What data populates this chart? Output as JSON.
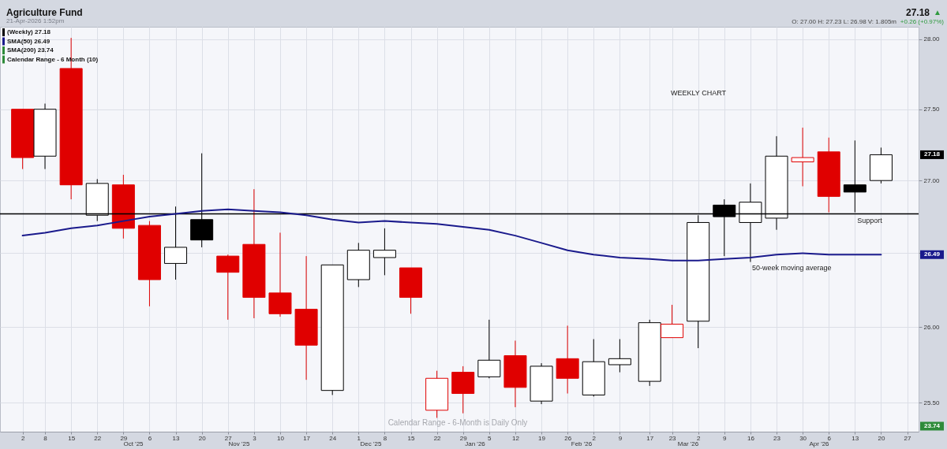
{
  "chart_data": {
    "type": "candlestick",
    "title": "Agriculture Fund",
    "subtitle": "21-Apr-2026 1:52pm",
    "x": [
      "2025-09-02",
      "2025-09-08",
      "2025-09-15",
      "2025-09-22",
      "2025-09-29",
      "2025-10-06",
      "2025-10-13",
      "2025-10-20",
      "2025-10-27",
      "2025-11-03",
      "2025-11-10",
      "2025-11-17",
      "2025-11-24",
      "2025-12-01",
      "2025-12-08",
      "2025-12-15",
      "2025-12-22",
      "2025-12-29",
      "2026-01-05",
      "2026-01-12",
      "2026-01-19",
      "2026-01-26",
      "2026-02-02",
      "2026-02-09",
      "2026-02-17",
      "2026-02-23",
      "2026-03-02",
      "2026-03-09",
      "2026-03-16",
      "2026-03-23",
      "2026-03-30",
      "2026-04-06",
      "2026-04-13",
      "2026-04-20"
    ],
    "series": [
      {
        "name": "(Weekly) 27.18",
        "ohlc": [
          [
            27.5,
            27.5,
            27.08,
            27.16
          ],
          [
            27.17,
            27.54,
            27.08,
            27.5
          ],
          [
            27.79,
            28.01,
            26.87,
            26.97
          ],
          [
            26.76,
            27.01,
            26.72,
            26.98
          ],
          [
            26.97,
            27.04,
            26.6,
            26.67
          ],
          [
            26.69,
            26.72,
            26.14,
            26.32
          ],
          [
            26.43,
            26.82,
            26.32,
            26.54
          ],
          [
            26.73,
            27.19,
            26.54,
            26.59
          ],
          [
            26.48,
            26.49,
            26.05,
            26.37
          ],
          [
            26.56,
            26.94,
            26.06,
            26.2
          ],
          [
            26.23,
            26.64,
            26.07,
            26.09
          ],
          [
            26.12,
            26.48,
            25.65,
            25.88
          ],
          [
            25.58,
            26.42,
            25.55,
            26.42
          ],
          [
            26.32,
            26.57,
            26.27,
            26.52
          ],
          [
            26.47,
            26.67,
            26.35,
            26.52
          ],
          [
            26.4,
            26.4,
            26.09,
            26.2
          ],
          [
            25.45,
            25.71,
            25.4,
            25.66
          ],
          [
            25.7,
            25.74,
            25.43,
            25.56
          ],
          [
            25.67,
            26.05,
            25.66,
            25.78
          ],
          [
            25.81,
            25.91,
            25.47,
            25.6
          ],
          [
            25.51,
            25.76,
            25.49,
            25.74
          ],
          [
            25.79,
            26.01,
            25.56,
            25.66
          ],
          [
            25.55,
            25.92,
            25.54,
            25.77
          ],
          [
            25.75,
            25.92,
            25.7,
            25.79
          ],
          [
            25.64,
            26.05,
            25.61,
            26.03
          ],
          [
            25.93,
            26.15,
            25.93,
            26.02
          ],
          [
            26.04,
            26.76,
            25.86,
            26.71
          ],
          [
            26.83,
            26.87,
            26.48,
            26.75
          ],
          [
            26.71,
            26.98,
            26.44,
            26.85
          ],
          [
            26.74,
            27.31,
            26.66,
            27.17
          ],
          [
            27.13,
            27.37,
            26.96,
            27.16
          ],
          [
            27.2,
            27.3,
            26.78,
            26.89
          ],
          [
            26.97,
            27.28,
            26.78,
            26.92
          ],
          [
            27.0,
            27.23,
            26.98,
            27.18
          ]
        ],
        "colors": [
          "#e00000",
          "#000000",
          "#e00000",
          "#000000",
          "#e00000",
          "#e00000",
          "#000000",
          "#000000",
          "#e00000",
          "#e00000",
          "#e00000",
          "#e00000",
          "#000000",
          "#000000",
          "#000000",
          "#e00000",
          "#e00000",
          "#e00000",
          "#000000",
          "#e00000",
          "#000000",
          "#e00000",
          "#000000",
          "#000000",
          "#000000",
          "#e00000",
          "#000000",
          "#000000",
          "#000000",
          "#000000",
          "#e00000",
          "#e00000",
          "#000000",
          "#000000"
        ]
      },
      {
        "name": "SMA(50) 26.49",
        "type": "line",
        "color": "#1a1a8c",
        "values": [
          26.62,
          26.64,
          26.67,
          26.69,
          26.72,
          26.75,
          26.77,
          26.79,
          26.8,
          26.79,
          26.78,
          26.76,
          26.73,
          26.71,
          26.72,
          26.71,
          26.7,
          26.68,
          26.66,
          26.62,
          26.57,
          26.52,
          26.49,
          26.47,
          26.46,
          26.45,
          26.45,
          26.46,
          26.47,
          26.49,
          26.5,
          26.49,
          26.49,
          26.49
        ]
      },
      {
        "name": "SMA(200) 23.74",
        "type": "line",
        "color": "#2e8b3a",
        "values": [
          null,
          null,
          null,
          null,
          null,
          null,
          null,
          null,
          null,
          null,
          null,
          null,
          null,
          null,
          null,
          null,
          null,
          null,
          null,
          null,
          null,
          null,
          null,
          null,
          null,
          null,
          null,
          null,
          null,
          null,
          null,
          null,
          null,
          null
        ]
      },
      {
        "name": "Calendar Range - 6 Month (10)",
        "type": "line",
        "color": "#2e8b3a",
        "values": [
          null,
          null,
          null,
          null,
          null,
          null,
          null,
          null,
          null,
          null,
          null,
          null,
          null,
          null,
          null,
          null,
          null,
          null,
          null,
          null,
          null,
          null,
          null,
          null,
          null,
          null,
          null,
          null,
          null,
          null,
          null,
          null,
          null,
          null
        ]
      }
    ],
    "xlim": [
      "2025-08-28",
      "2026-04-29"
    ],
    "xticks": [
      {
        "value": "2025-09-02",
        "label": "2"
      },
      {
        "value": "2025-09-08",
        "label": "8"
      },
      {
        "value": "2025-09-15",
        "label": "15"
      },
      {
        "value": "2025-09-22",
        "label": "22"
      },
      {
        "value": "2025-09-29",
        "label": "29"
      },
      {
        "value": "2025-10-06",
        "label": "6"
      },
      {
        "value": "2025-10-13",
        "label": "13"
      },
      {
        "value": "2025-10-20",
        "label": "20"
      },
      {
        "value": "2025-10-27",
        "label": "27"
      },
      {
        "value": "2025-11-03",
        "label": "3"
      },
      {
        "value": "2025-11-10",
        "label": "10"
      },
      {
        "value": "2025-11-17",
        "label": "17"
      },
      {
        "value": "2025-11-24",
        "label": "24"
      },
      {
        "value": "2025-12-01",
        "label": "1"
      },
      {
        "value": "2025-12-08",
        "label": "8"
      },
      {
        "value": "2025-12-15",
        "label": "15"
      },
      {
        "value": "2025-12-22",
        "label": "22"
      },
      {
        "value": "2025-12-29",
        "label": "29"
      },
      {
        "value": "2026-01-05",
        "label": "5"
      },
      {
        "value": "2026-01-12",
        "label": "12"
      },
      {
        "value": "2026-01-19",
        "label": "19"
      },
      {
        "value": "2026-01-26",
        "label": "26"
      },
      {
        "value": "2026-02-02",
        "label": "2"
      },
      {
        "value": "2026-02-09",
        "label": "9"
      },
      {
        "value": "2026-02-17",
        "label": "17"
      },
      {
        "value": "2026-02-23",
        "label": "23"
      },
      {
        "value": "2026-03-02",
        "label": "2"
      },
      {
        "value": "2026-03-09",
        "label": "9"
      },
      {
        "value": "2026-03-16",
        "label": "16"
      },
      {
        "value": "2026-03-23",
        "label": "23"
      },
      {
        "value": "2026-03-30",
        "label": "30"
      },
      {
        "value": "2026-04-06",
        "label": "6"
      },
      {
        "value": "2026-04-13",
        "label": "13"
      },
      {
        "value": "2026-04-20",
        "label": "20"
      },
      {
        "value": "2026-04-27",
        "label": "27"
      }
    ],
    "ylim": [
      25.31,
      28.09
    ],
    "yticks": [
      {
        "value": 25.5,
        "label": "25.50"
      },
      {
        "value": 26,
        "label": "26.00"
      },
      {
        "value": 26.5,
        "label": null
      },
      {
        "value": 27,
        "label": "27.00"
      },
      {
        "value": 27.5,
        "label": "27.50"
      },
      {
        "value": 28,
        "label": "28.00"
      }
    ],
    "log": true,
    "grid": true,
    "legend": "top left",
    "ref_lines": [
      {
        "axis": "y",
        "value": 26.77,
        "label": "Support",
        "color": "#000000"
      }
    ],
    "annotations": [
      "27.18",
      "▲",
      "O: 27.00   H: 27.23   L: 26.98   V: 1.805m",
      "+0.26 (+0.97%)",
      "WEEKLY CHART",
      "50-week moving average",
      "Calendar Range - 6-Month is Daily Only",
      "27.18",
      "26.49",
      "23.74",
      "Oct '25",
      "Nov '25",
      "Dec '25",
      "Jan '26",
      "Feb '26",
      "Mar '26",
      "Apr '26"
    ]
  }
}
